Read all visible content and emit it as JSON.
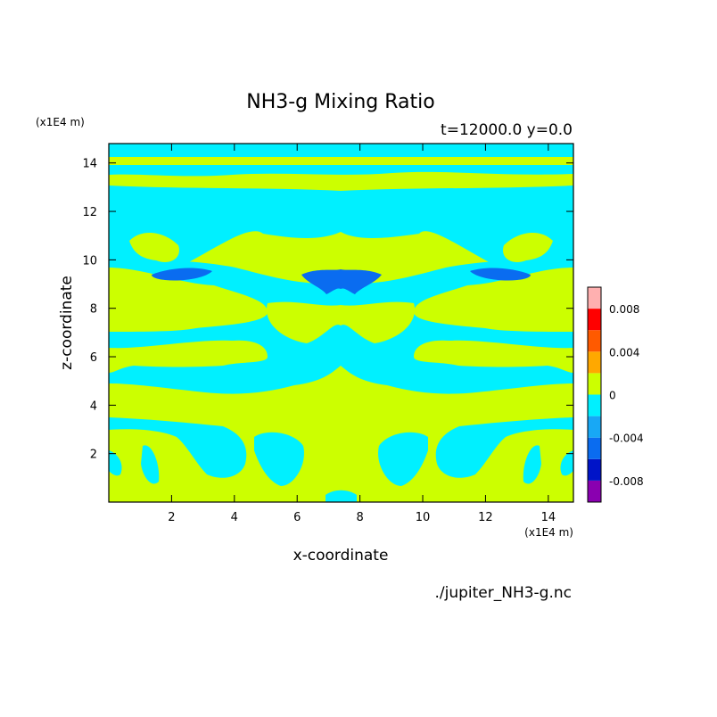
{
  "chart_data": {
    "type": "heatmap",
    "title": "NH3-g Mixing Ratio",
    "subtitle": "t=12000.0 y=0.0",
    "xlabel": "x-coordinate",
    "ylabel": "z-coordinate",
    "x_unit": "(x1E4 m)",
    "y_unit": "(x1E4 m)",
    "source": "./jupiter_NH3-g.nc",
    "xlim": [
      0,
      14.8
    ],
    "ylim": [
      0,
      14.8
    ],
    "xticks": [
      2,
      4,
      6,
      8,
      10,
      12,
      14
    ],
    "yticks": [
      2,
      4,
      6,
      8,
      10,
      12,
      14
    ],
    "dominant_level": "0",
    "colorbar": {
      "levels": [
        -0.01,
        -0.008,
        -0.006,
        -0.004,
        -0.002,
        0,
        0.002,
        0.004,
        0.006,
        0.008,
        0.01
      ],
      "tick_labels": [
        "-0.008",
        "-0.004",
        "0",
        "0.004",
        "0.008"
      ],
      "tick_values": [
        -0.008,
        -0.004,
        0,
        0.004,
        0.008
      ],
      "colors": [
        "#8a00b0",
        "#0014c8",
        "#0a6cf0",
        "#18a8f5",
        "#00f0ff",
        "#ccff00",
        "#ffa800",
        "#ff5a00",
        "#ff0000",
        "#ffb0b0"
      ]
    }
  }
}
